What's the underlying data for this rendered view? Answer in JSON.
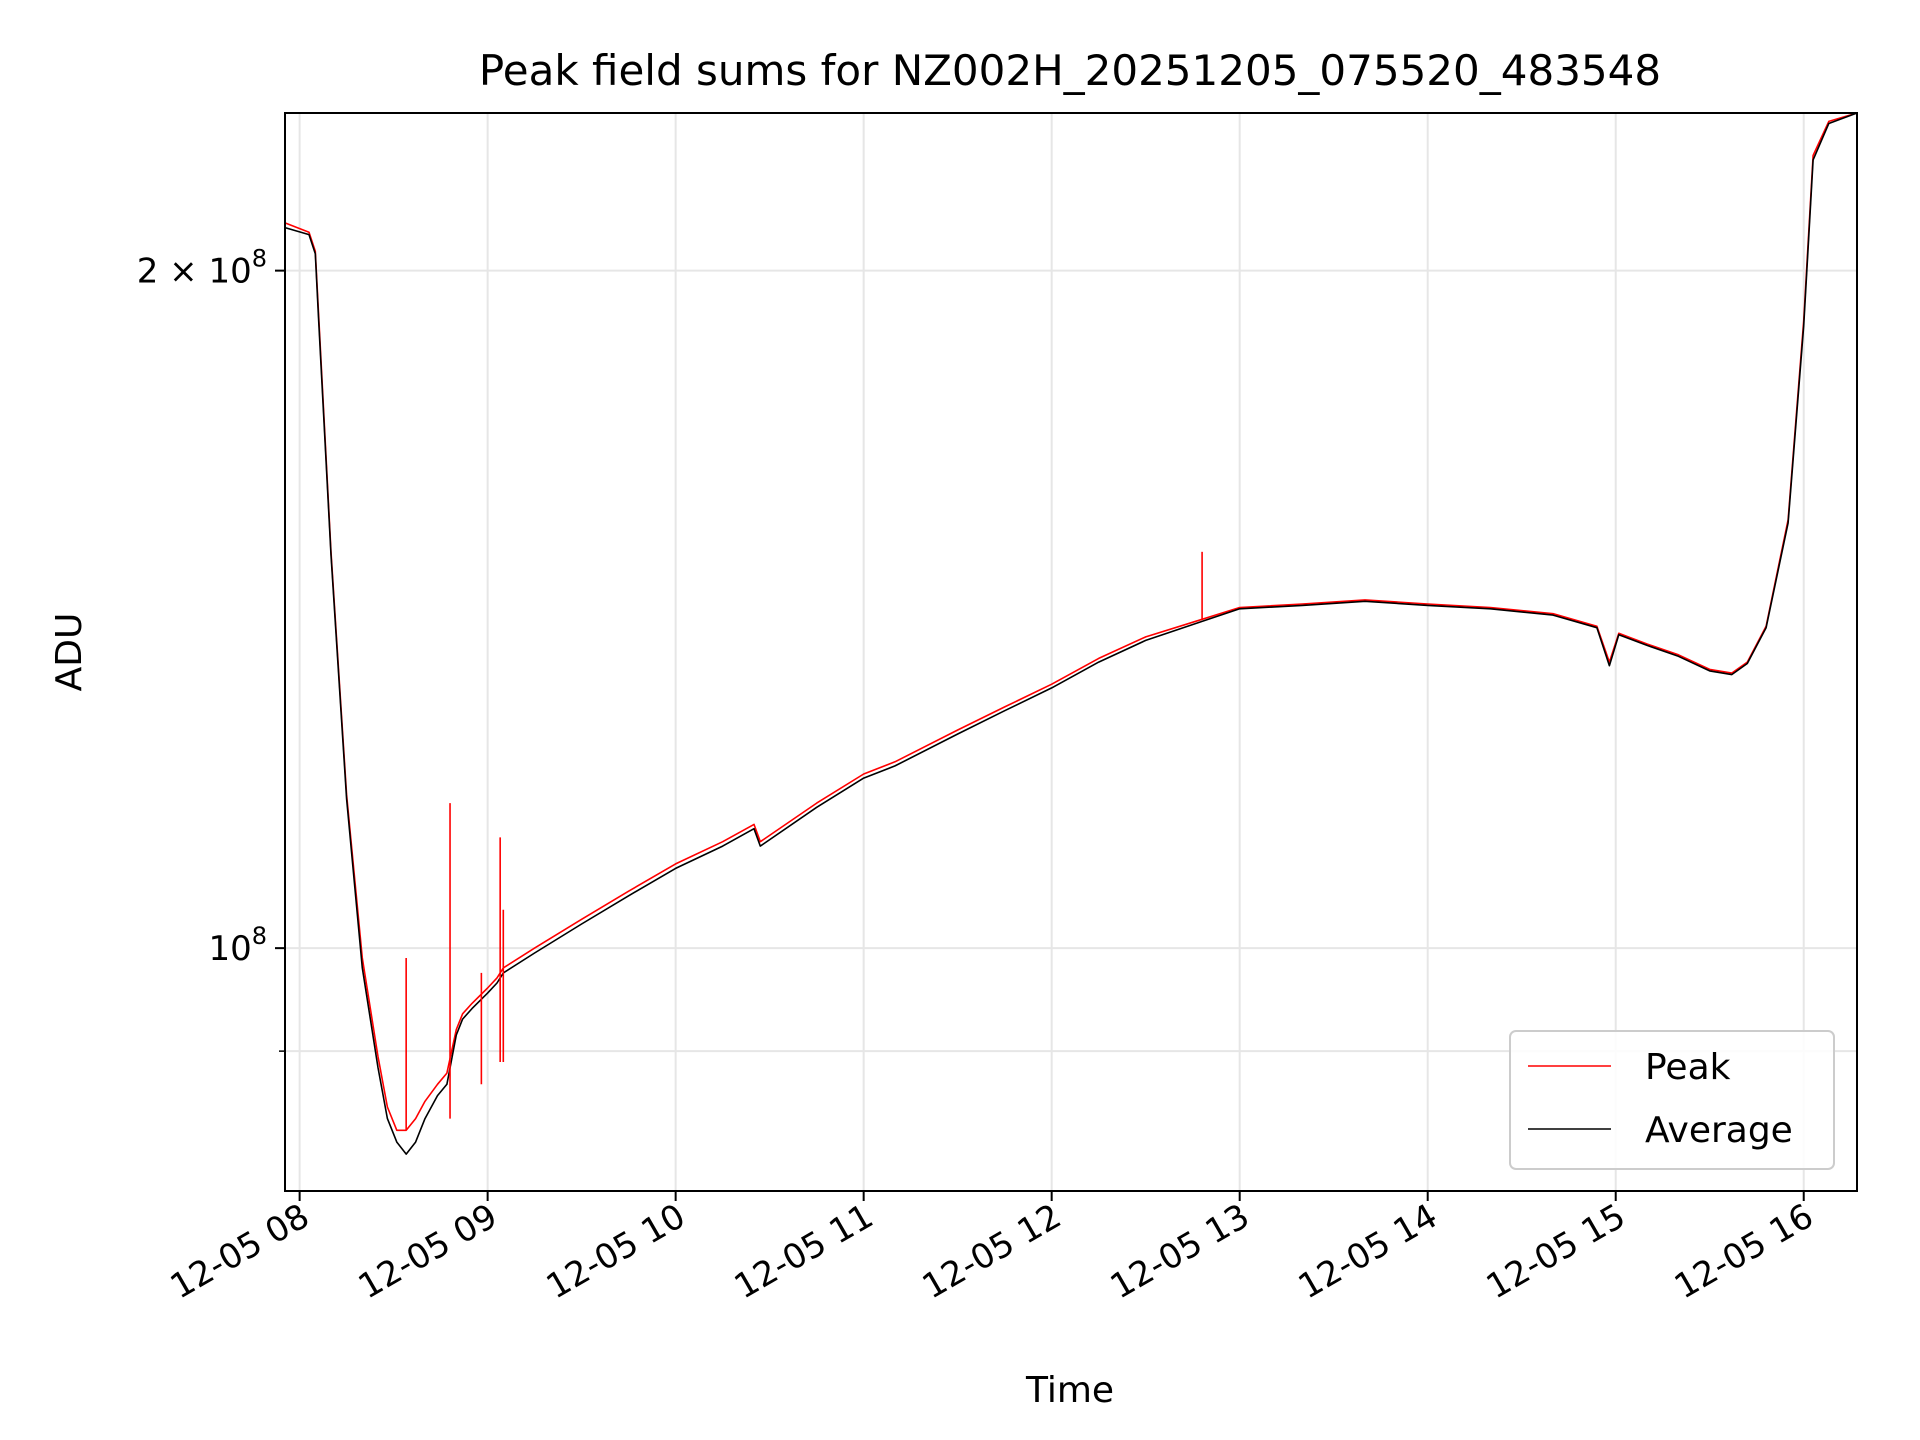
{
  "chart_data": {
    "type": "line",
    "title": "Peak field sums for NZ002H_20251205_075520_483548",
    "xlabel": "Time",
    "ylabel": "ADU",
    "y_scale": "log",
    "ylim": [
      78000000,
      235000000
    ],
    "xlim": [
      "12-05 07:55:20",
      "12-05 16:17:00"
    ],
    "grid": true,
    "legend_position": "lower-right",
    "x_ticks": [
      {
        "t": "12-05 08:00",
        "label": "12-05 08"
      },
      {
        "t": "12-05 09:00",
        "label": "12-05 09"
      },
      {
        "t": "12-05 10:00",
        "label": "12-05 10"
      },
      {
        "t": "12-05 11:00",
        "label": "12-05 11"
      },
      {
        "t": "12-05 12:00",
        "label": "12-05 12"
      },
      {
        "t": "12-05 13:00",
        "label": "12-05 13"
      },
      {
        "t": "12-05 14:00",
        "label": "12-05 14"
      },
      {
        "t": "12-05 15:00",
        "label": "12-05 15"
      },
      {
        "t": "12-05 16:00",
        "label": "12-05 16"
      }
    ],
    "y_ticks_major": [
      {
        "value": 100000000,
        "base": "10",
        "exp": "8"
      },
      {
        "value": 200000000,
        "base": "2 × 10",
        "exp": "8"
      }
    ],
    "y_ticks_minor": [
      90000000
    ],
    "series": [
      {
        "name": "Peak",
        "color": "#ff0000",
        "x": [
          "12-05 07:55:20",
          "12-05 08:03",
          "12-05 08:05",
          "12-05 08:06",
          "12-05 08:10",
          "12-05 08:15",
          "12-05 08:20",
          "12-05 08:25",
          "12-05 08:28",
          "12-05 08:31",
          "12-05 08:34",
          "12-05 08:37",
          "12-05 08:40",
          "12-05 08:44",
          "12-05 08:47",
          "12-05 08:50",
          "12-05 08:52",
          "12-05 08:55",
          "12-05 09:00",
          "12-05 09:03",
          "12-05 09:05",
          "12-05 09:15",
          "12-05 09:30",
          "12-05 09:45",
          "12-05 10:00",
          "12-05 10:15",
          "12-05 10:25",
          "12-05 10:27",
          "12-05 10:45",
          "12-05 11:00",
          "12-05 11:10",
          "12-05 11:30",
          "12-05 11:45",
          "12-05 12:00",
          "12-05 12:15",
          "12-05 12:30",
          "12-05 12:48",
          "12-05 13:00",
          "12-05 13:20",
          "12-05 13:40",
          "12-05 14:00",
          "12-05 14:20",
          "12-05 14:40",
          "12-05 14:54",
          "12-05 14:58",
          "12-05 15:01",
          "12-05 15:10",
          "12-05 15:20",
          "12-05 15:30",
          "12-05 15:37",
          "12-05 15:42",
          "12-05 15:48",
          "12-05 15:55",
          "12-05 16:00",
          "12-05 16:03",
          "12-05 16:08",
          "12-05 16:17"
        ],
        "values": [
          210000000,
          208000000,
          204000000,
          192000000,
          150000000,
          117000000,
          99000000,
          89500000,
          85000000,
          83000000,
          83000000,
          84000000,
          85500000,
          87000000,
          88000000,
          92000000,
          93500000,
          94500000,
          96000000,
          97000000,
          98000000,
          100000000,
          103000000,
          106000000,
          109000000,
          111500000,
          113500000,
          111500000,
          116000000,
          119500000,
          121000000,
          125000000,
          128000000,
          131000000,
          134500000,
          137500000,
          140000000,
          141700000,
          142200000,
          142800000,
          142200000,
          141700000,
          140800000,
          139000000,
          134000000,
          138000000,
          136500000,
          135000000,
          133000000,
          132500000,
          134000000,
          139000000,
          155000000,
          190000000,
          225000000,
          233000000,
          235000000
        ]
      },
      {
        "name": "Average",
        "color": "#000000",
        "x": [
          "12-05 07:55:20",
          "12-05 08:03",
          "12-05 08:05",
          "12-05 08:06",
          "12-05 08:10",
          "12-05 08:15",
          "12-05 08:20",
          "12-05 08:25",
          "12-05 08:28",
          "12-05 08:31",
          "12-05 08:34",
          "12-05 08:37",
          "12-05 08:40",
          "12-05 08:44",
          "12-05 08:47",
          "12-05 08:50",
          "12-05 08:52",
          "12-05 08:55",
          "12-05 09:00",
          "12-05 09:03",
          "12-05 09:05",
          "12-05 09:15",
          "12-05 09:30",
          "12-05 09:45",
          "12-05 10:00",
          "12-05 10:15",
          "12-05 10:25",
          "12-05 10:27",
          "12-05 10:45",
          "12-05 11:00",
          "12-05 11:10",
          "12-05 11:30",
          "12-05 11:45",
          "12-05 12:00",
          "12-05 12:15",
          "12-05 12:30",
          "12-05 12:48",
          "12-05 13:00",
          "12-05 13:20",
          "12-05 13:40",
          "12-05 14:00",
          "12-05 14:20",
          "12-05 14:40",
          "12-05 14:54",
          "12-05 14:58",
          "12-05 15:01",
          "12-05 15:10",
          "12-05 15:20",
          "12-05 15:30",
          "12-05 15:37",
          "12-05 15:42",
          "12-05 15:48",
          "12-05 15:55",
          "12-05 16:00",
          "12-05 16:03",
          "12-05 16:08",
          "12-05 16:17"
        ],
        "values": [
          209000000,
          207500000,
          203500000,
          191000000,
          149500000,
          116500000,
          98000000,
          88500000,
          84000000,
          82000000,
          81000000,
          82000000,
          84000000,
          86000000,
          87000000,
          91500000,
          93000000,
          94000000,
          95500000,
          96500000,
          97500000,
          99500000,
          102500000,
          105500000,
          108500000,
          111000000,
          113000000,
          111000000,
          115500000,
          119000000,
          120500000,
          124500000,
          127500000,
          130500000,
          134000000,
          137000000,
          139700000,
          141500000,
          142000000,
          142600000,
          142000000,
          141500000,
          140600000,
          138800000,
          133500000,
          137800000,
          136300000,
          134800000,
          132800000,
          132300000,
          133800000,
          138800000,
          154500000,
          189000000,
          224000000,
          232500000,
          235000000
        ]
      }
    ],
    "spikes": [
      {
        "series": "Peak",
        "t": "12-05 08:34",
        "base": 83000000,
        "top": 99000000
      },
      {
        "series": "Peak",
        "t": "12-05 08:48",
        "base": 84000000,
        "top": 116000000
      },
      {
        "series": "Peak",
        "t": "12-05 08:58",
        "base": 87000000,
        "top": 97500000
      },
      {
        "series": "Peak",
        "t": "12-05 09:04",
        "base": 89000000,
        "top": 112000000
      },
      {
        "series": "Peak",
        "t": "12-05 09:05",
        "base": 89000000,
        "top": 104000000
      },
      {
        "series": "Peak",
        "t": "12-05 12:48",
        "base": 140000000,
        "top": 150000000
      }
    ]
  }
}
